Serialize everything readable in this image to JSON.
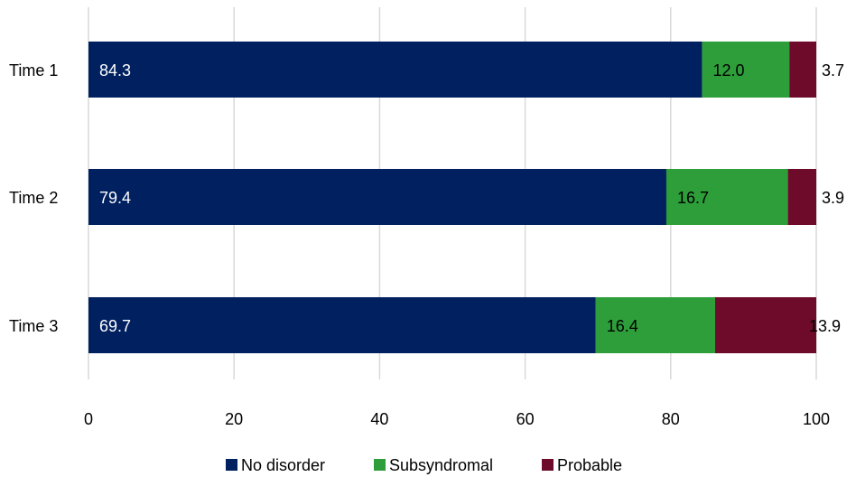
{
  "chart_data": {
    "type": "bar",
    "orientation": "horizontal",
    "stacked": true,
    "categories": [
      "Time 1",
      "Time 2",
      "Time 3"
    ],
    "series": [
      {
        "name": "No disorder",
        "values": [
          84.3,
          79.4,
          69.7
        ],
        "labels": [
          "84.3",
          "79.4",
          "69.7"
        ],
        "color": "#002060",
        "label_color": "#ffffff"
      },
      {
        "name": "Subsyndromal",
        "values": [
          12.0,
          16.7,
          16.4
        ],
        "labels": [
          "12.0",
          "16.7",
          "16.4"
        ],
        "color": "#2e9e3a",
        "label_color": "#000000"
      },
      {
        "name": "Probable",
        "values": [
          3.7,
          3.9,
          13.9
        ],
        "labels": [
          "3.7",
          "3.9",
          "13.9"
        ],
        "color": "#6e0b2a",
        "label_color": "#000000"
      }
    ],
    "xlim": [
      0,
      100
    ],
    "xticks": [
      "0",
      "20",
      "40",
      "60",
      "80",
      "100"
    ],
    "grid": true,
    "legend": "bottom",
    "gridline_color": "#d9d9d9"
  }
}
